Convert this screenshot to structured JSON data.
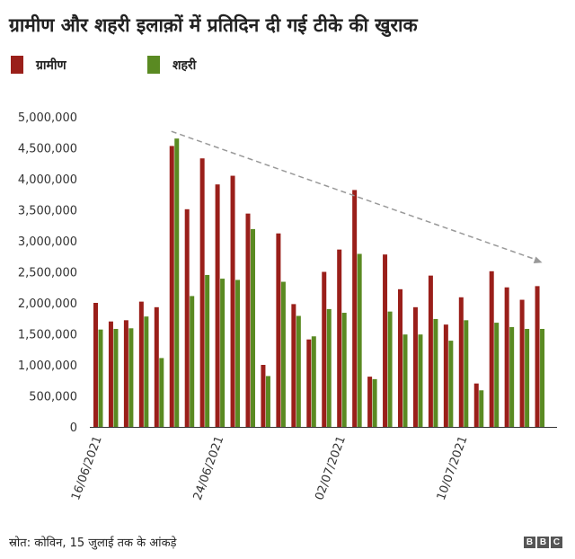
{
  "chart_data": {
    "type": "bar",
    "title": "ग्रामीण और शहरी इलाक़ों में प्रतिदिन दी गई टीके की खुराक",
    "xlabel": "",
    "ylabel": "",
    "ylim": [
      0,
      5000000
    ],
    "yticks": [
      0,
      500000,
      1000000,
      1500000,
      2000000,
      2500000,
      3000000,
      3500000,
      4000000,
      4500000,
      5000000
    ],
    "ytick_labels": [
      "0",
      "500,000",
      "1,000,000",
      "1,500,000",
      "2,000,000",
      "2,500,000",
      "3,000,000",
      "3,500,000",
      "4,000,000",
      "4,500,000",
      "5,000,000"
    ],
    "xtick_labels": [
      {
        "index": 0,
        "label": "16/06/2021"
      },
      {
        "index": 8,
        "label": "24/06/2021"
      },
      {
        "index": 16,
        "label": "02/07/2021"
      },
      {
        "index": 24,
        "label": "10/07/2021"
      }
    ],
    "categories": [
      "16/06/2021",
      "17/06/2021",
      "18/06/2021",
      "19/06/2021",
      "20/06/2021",
      "21/06/2021",
      "22/06/2021",
      "23/06/2021",
      "24/06/2021",
      "25/06/2021",
      "26/06/2021",
      "27/06/2021",
      "28/06/2021",
      "29/06/2021",
      "30/06/2021",
      "01/07/2021",
      "02/07/2021",
      "03/07/2021",
      "04/07/2021",
      "05/07/2021",
      "06/07/2021",
      "07/07/2021",
      "08/07/2021",
      "09/07/2021",
      "10/07/2021",
      "11/07/2021",
      "12/07/2021",
      "13/07/2021",
      "14/07/2021",
      "15/07/2021"
    ],
    "series": [
      {
        "name": "ग्रामीण",
        "color": "#9a1f1a",
        "values": [
          2000000,
          1700000,
          1720000,
          2020000,
          1930000,
          4530000,
          3510000,
          4330000,
          3910000,
          4050000,
          3440000,
          1000000,
          3120000,
          1980000,
          1410000,
          2500000,
          2860000,
          3820000,
          810000,
          2780000,
          2220000,
          1930000,
          2440000,
          1650000,
          2090000,
          700000,
          2510000,
          2250000,
          2050000,
          2270000
        ]
      },
      {
        "name": "शहरी",
        "color": "#5a8a22",
        "values": [
          1570000,
          1580000,
          1590000,
          1780000,
          1110000,
          4650000,
          2110000,
          2450000,
          2390000,
          2370000,
          3190000,
          820000,
          2340000,
          1790000,
          1460000,
          1900000,
          1840000,
          2790000,
          770000,
          1860000,
          1490000,
          1490000,
          1740000,
          1390000,
          1720000,
          590000,
          1680000,
          1610000,
          1580000,
          1580000
        ]
      }
    ],
    "annotations": [
      {
        "type": "trend-arrow",
        "style": "dashed",
        "color": "#999999",
        "from_index": 5,
        "from_value": 4650000,
        "to_index": 29,
        "to_value": 2330000
      }
    ],
    "legend_position": "top-left",
    "grid": false
  },
  "legend": {
    "items": [
      {
        "label": "ग्रामीण",
        "color": "#9a1f1a"
      },
      {
        "label": "शहरी",
        "color": "#5a8a22"
      }
    ]
  },
  "source": "स्रोत: कोविन, 15 जुलाई तक के आंकड़े",
  "logo": {
    "letters": [
      "B",
      "B",
      "C"
    ]
  }
}
